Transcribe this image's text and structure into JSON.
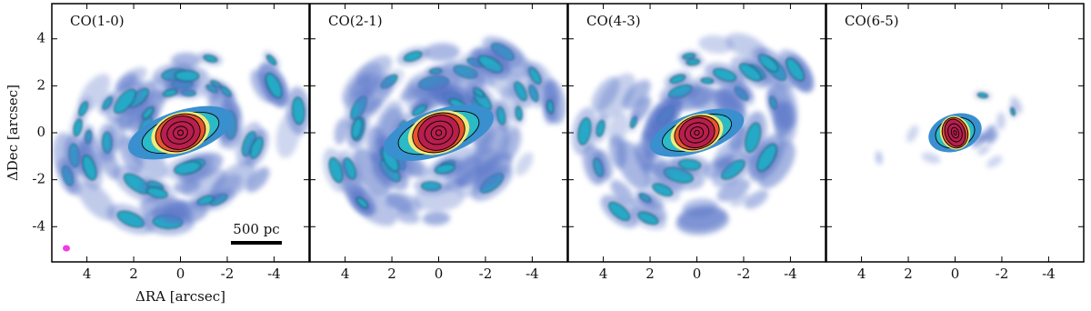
{
  "chart_data": [
    {
      "type": "map",
      "title": "CO(1-0)",
      "xlabel": "ΔRA [arcsec]",
      "ylabel": "ΔDec [arcsec]",
      "scalebar": "500 pc",
      "xlim": [
        5.5,
        -5.5
      ],
      "ylim": [
        -5.5,
        5.5
      ],
      "xticks": [
        4,
        2,
        0,
        -2,
        -4
      ],
      "yticks": [
        -4,
        -2,
        0,
        2,
        4
      ]
    },
    {
      "type": "map",
      "title": "CO(2-1)",
      "xlim": [
        5.5,
        -5.5
      ],
      "ylim": [
        -5.5,
        5.5
      ],
      "xticks": [
        4,
        2,
        0,
        -2,
        -4
      ],
      "yticks": [
        -4,
        -2,
        0,
        2,
        4
      ]
    },
    {
      "type": "map",
      "title": "CO(4-3)",
      "xlim": [
        5.5,
        -5.5
      ],
      "ylim": [
        -5.5,
        5.5
      ],
      "xticks": [
        4,
        2,
        0,
        -2,
        -4
      ],
      "yticks": [
        -4,
        -2,
        0,
        2,
        4
      ]
    },
    {
      "type": "map",
      "title": "CO(6-5)",
      "xlim": [
        5.5,
        -5.5
      ],
      "ylim": [
        -5.5,
        5.5
      ],
      "xticks": [
        4,
        2,
        0,
        -2,
        -4
      ],
      "yticks": [
        -4,
        -2,
        0,
        2,
        4
      ]
    }
  ]
}
